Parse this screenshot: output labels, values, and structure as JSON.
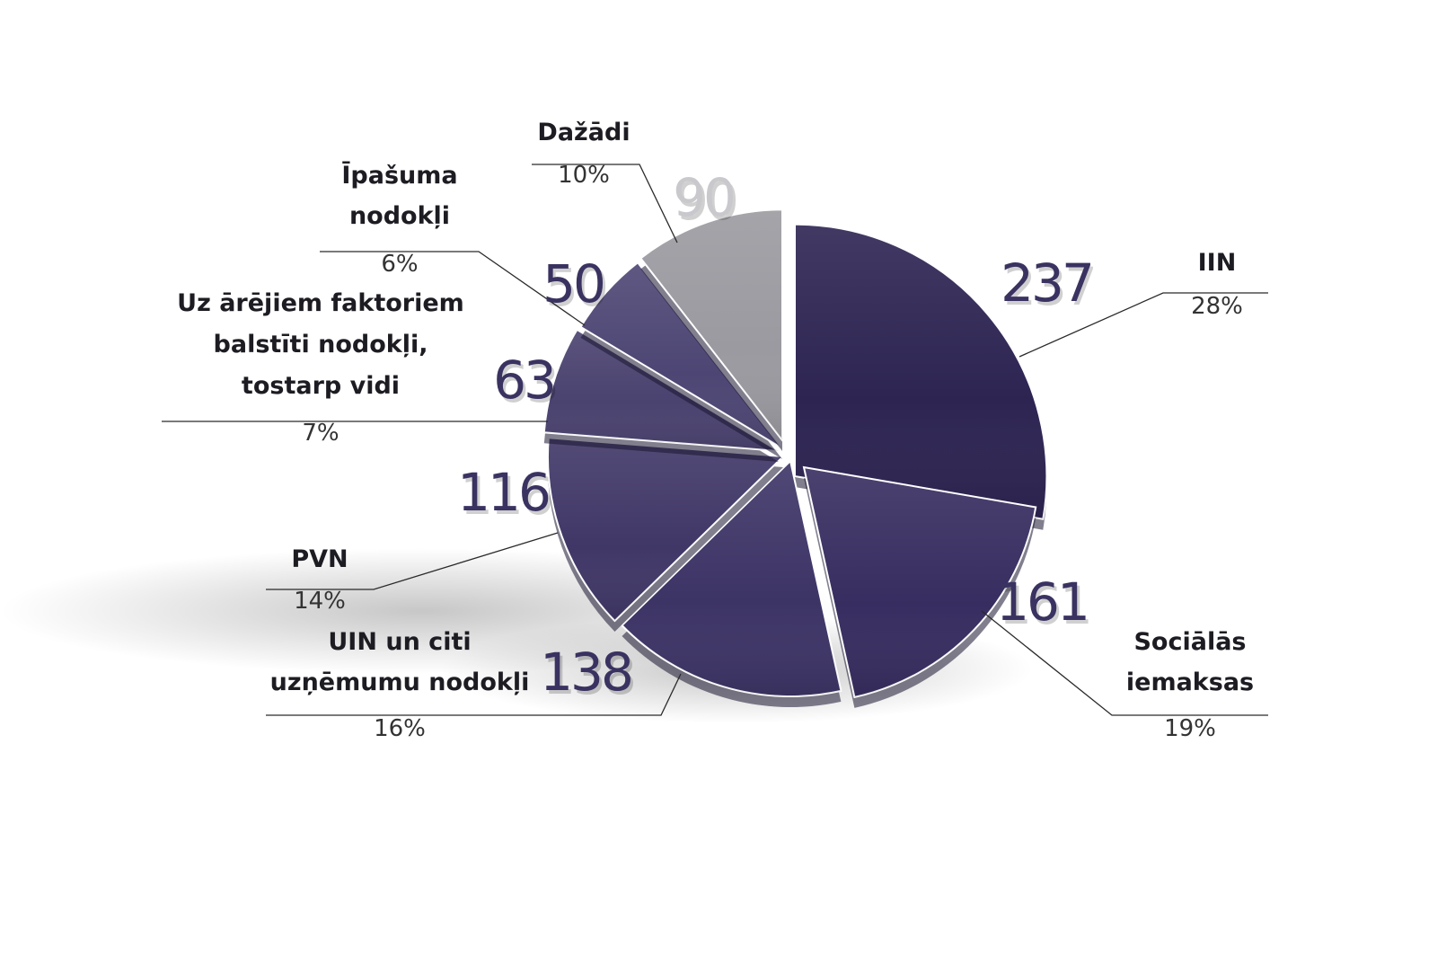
{
  "chart_data": {
    "type": "pie",
    "title": "",
    "slices": [
      {
        "name": "IIN",
        "value": 237,
        "percent_label": "28%",
        "color": "#2d2452"
      },
      {
        "name": "Sociālās iemaksas",
        "value": 161,
        "percent_label": "19%",
        "color": "#372d60"
      },
      {
        "name": "UIN un citi uzņēmumu nodokļi",
        "value": 138,
        "percent_label": "16%",
        "color": "#3d3466"
      },
      {
        "name": "PVN",
        "value": 116,
        "percent_label": "14%",
        "color": "#403767"
      },
      {
        "name": "Uz ārējiem faktoriem balstīti nodokļi, tostarp vidi",
        "value": 63,
        "percent_label": "7%",
        "color": "#4a426f"
      },
      {
        "name": "Īpašuma nodokļi",
        "value": 50,
        "percent_label": "6%",
        "color": "#4d4674"
      },
      {
        "name": "Dažādi",
        "value": 90,
        "percent_label": "10%",
        "color": "#9a9aa0"
      }
    ],
    "legend": "none",
    "colors": {
      "value_label": "#3a3260",
      "value_label_misc": "#c9c9cd",
      "leader_line": "#2a2a2a"
    }
  }
}
